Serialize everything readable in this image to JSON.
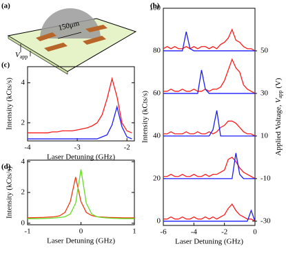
{
  "schematic": {
    "panel": "(a)",
    "scale": "150μm",
    "voltage": "V",
    "voltage_sub": "app"
  },
  "chart_data": [
    {
      "type": "line",
      "panel": "(b)",
      "xlabel": "Laser Detuning (GHz)",
      "ylabel": "Intensity (kCts/s)",
      "y2label": {
        "text": "Applied Voltage, ",
        "symbol": "V",
        "subscript": "app",
        "unit": " (V)"
      },
      "xlim": [
        -6,
        0
      ],
      "xticks": [
        -6,
        -4,
        -2,
        0
      ],
      "ylim": [
        -2,
        100
      ],
      "yticks": [
        0,
        20,
        40,
        60,
        80,
        100
      ],
      "y2lim": [
        -32,
        70
      ],
      "y2ticks": [
        -30,
        -10,
        10,
        30,
        50
      ],
      "x": [
        -6,
        -5.75,
        -5.5,
        -5.25,
        -5,
        -4.75,
        -4.5,
        -4.25,
        -4,
        -3.75,
        -3.5,
        -3.25,
        -3,
        -2.75,
        -2.5,
        -2.25,
        -2,
        -1.75,
        -1.5,
        -1.25,
        -1,
        -0.75,
        -0.5,
        -0.25,
        0
      ],
      "series": [
        {
          "color": "#ff1a1a",
          "values": [
            81,
            82,
            81,
            82,
            81,
            81,
            82,
            81,
            82,
            81,
            82,
            82,
            81,
            82,
            81,
            83,
            84,
            86,
            90,
            85,
            84,
            82,
            81,
            81,
            80
          ]
        },
        {
          "color": "#1a1aff",
          "values": [
            80,
            80,
            80,
            80,
            80,
            80,
            89,
            81,
            80,
            80,
            80,
            80,
            80,
            80,
            80,
            80,
            80,
            80,
            80,
            80,
            80,
            80,
            80,
            80,
            80
          ]
        },
        {
          "color": "#ff1a1a",
          "values": [
            61,
            61,
            62,
            61,
            61,
            62,
            61,
            61,
            62,
            61,
            61,
            62,
            61,
            62,
            62,
            63,
            66,
            71,
            76,
            72,
            70,
            64,
            62,
            61,
            60
          ]
        },
        {
          "color": "#1a1aff",
          "values": [
            60,
            60,
            60,
            60,
            60,
            60,
            60,
            60,
            60,
            60,
            71,
            62,
            60,
            60,
            60,
            60,
            60,
            60,
            60,
            60,
            60,
            60,
            60,
            60,
            60
          ]
        },
        {
          "color": "#ff1a1a",
          "values": [
            41,
            41,
            42,
            41,
            41,
            41,
            42,
            41,
            41,
            42,
            41,
            41,
            42,
            41,
            42,
            44,
            45,
            47,
            47,
            46,
            44,
            42,
            41,
            41,
            40
          ]
        },
        {
          "color": "#1a1aff",
          "values": [
            40,
            40,
            40,
            40,
            40,
            40,
            40,
            40,
            40,
            40,
            40,
            40,
            40,
            43,
            52,
            40,
            40,
            40,
            40,
            40,
            40,
            40,
            40,
            40,
            40
          ]
        },
        {
          "color": "#ff1a1a",
          "values": [
            21,
            21,
            22,
            21,
            21,
            22,
            21,
            21,
            22,
            21,
            21,
            22,
            21,
            22,
            22,
            23,
            24,
            29,
            30,
            28,
            25,
            23,
            22,
            21,
            20
          ]
        },
        {
          "color": "#1a1aff",
          "values": [
            20,
            20,
            20,
            20,
            20,
            20,
            20,
            20,
            20,
            20,
            20,
            20,
            20,
            20,
            20,
            20,
            20,
            20,
            20,
            32,
            22,
            20,
            20,
            20,
            20
          ]
        },
        {
          "color": "#ff1a1a",
          "values": [
            1,
            1,
            2,
            1,
            1,
            2,
            1,
            1,
            2,
            1,
            1,
            2,
            1,
            2,
            1,
            2,
            3,
            6,
            8,
            5,
            3,
            2,
            1,
            1,
            0
          ]
        },
        {
          "color": "#1a1aff",
          "values": [
            0,
            0,
            0,
            0,
            0,
            0,
            0,
            0,
            0,
            0,
            0,
            0,
            0,
            0,
            0,
            0,
            0,
            0,
            0,
            0,
            0,
            0,
            0,
            5,
            0
          ]
        }
      ]
    },
    {
      "type": "line",
      "panel": "(c)",
      "xlabel": "Laser Detuning (GHz)",
      "ylabel": "Intensity (kCts/s)",
      "xlim": [
        -4,
        -1.85
      ],
      "xticks": [
        -4,
        -3,
        -2
      ],
      "ylim": [
        1.1,
        4.8
      ],
      "yticks": [
        2,
        4
      ],
      "x": [
        -4,
        -3.9,
        -3.8,
        -3.7,
        -3.6,
        -3.5,
        -3.4,
        -3.3,
        -3.2,
        -3.1,
        -3.0,
        -2.9,
        -2.8,
        -2.7,
        -2.6,
        -2.5,
        -2.4,
        -2.3,
        -2.2,
        -2.1,
        -2.0,
        -1.9
      ],
      "series": [
        {
          "color": "#ff1a1a",
          "values": [
            1.5,
            1.5,
            1.5,
            1.5,
            1.5,
            1.55,
            1.55,
            1.6,
            1.6,
            1.6,
            1.65,
            1.7,
            1.75,
            1.85,
            2.0,
            2.4,
            3.2,
            4.2,
            3.3,
            2.0,
            1.6,
            1.5
          ]
        },
        {
          "color": "#1a1aff",
          "values": [
            1.2,
            1.2,
            1.2,
            1.2,
            1.2,
            1.2,
            1.2,
            1.2,
            1.2,
            1.2,
            1.2,
            1.2,
            1.2,
            1.2,
            1.2,
            1.3,
            1.4,
            1.9,
            2.8,
            1.8,
            1.3,
            1.2
          ]
        }
      ]
    },
    {
      "type": "line",
      "panel": "(d)",
      "xlabel": "Laser Detuning (GHz)",
      "ylabel": "Intensity (kCts/s)",
      "xlim": [
        -1,
        1
      ],
      "xticks": [
        -1,
        0,
        1
      ],
      "ylim": [
        -0.1,
        4.1
      ],
      "yticks": [
        0,
        2,
        4
      ],
      "x": [
        -1,
        -0.9,
        -0.8,
        -0.7,
        -0.6,
        -0.5,
        -0.4,
        -0.3,
        -0.2,
        -0.1,
        0,
        0.1,
        0.2,
        0.3,
        0.4,
        0.5,
        0.6,
        0.7,
        0.8,
        0.9,
        1
      ],
      "series": [
        {
          "color": "#ee3a10",
          "values": [
            0.35,
            0.36,
            0.37,
            0.38,
            0.4,
            0.42,
            0.48,
            0.7,
            1.4,
            3.0,
            1.4,
            0.7,
            0.5,
            0.42,
            0.4,
            0.38,
            0.37,
            0.36,
            0.35,
            0.35,
            0.35
          ]
        },
        {
          "color": "#66dd22",
          "values": [
            0.3,
            0.3,
            0.3,
            0.31,
            0.32,
            0.34,
            0.37,
            0.42,
            0.6,
            1.3,
            3.5,
            1.3,
            0.6,
            0.42,
            0.37,
            0.34,
            0.32,
            0.31,
            0.3,
            0.3,
            0.3
          ]
        }
      ]
    }
  ]
}
